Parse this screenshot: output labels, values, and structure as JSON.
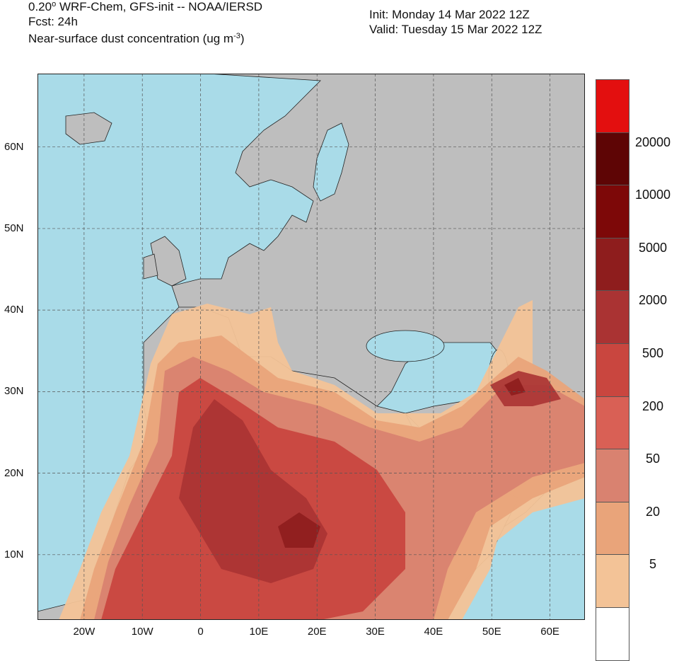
{
  "header": {
    "model_prefix": "0.20",
    "degree": "o",
    "model_suffix": " WRF-Chem, GFS-init -- NOAA/IERSD",
    "forecast": "Fcst: 24h",
    "variable_prefix": "Near-surface dust concentration (ug m",
    "variable_exp": "-3",
    "variable_suffix": ")",
    "init": "Init: Monday 14 Mar 2022  12Z",
    "valid": "Valid: Tuesday 15 Mar 2022  12Z"
  },
  "map": {
    "lon_range": [
      -28,
      66
    ],
    "lat_range": [
      2,
      69
    ],
    "lat_ticks": [
      {
        "value": 60,
        "label": "60N"
      },
      {
        "value": 50,
        "label": "50N"
      },
      {
        "value": 40,
        "label": "40N"
      },
      {
        "value": 30,
        "label": "30N"
      },
      {
        "value": 20,
        "label": "20N"
      },
      {
        "value": 10,
        "label": "10N"
      }
    ],
    "lon_ticks": [
      {
        "value": -20,
        "label": "20W"
      },
      {
        "value": -10,
        "label": "10W"
      },
      {
        "value": 0,
        "label": "0"
      },
      {
        "value": 10,
        "label": "10E"
      },
      {
        "value": 20,
        "label": "20E"
      },
      {
        "value": 30,
        "label": "30E"
      },
      {
        "value": 40,
        "label": "40E"
      },
      {
        "value": 50,
        "label": "50E"
      },
      {
        "value": 60,
        "label": "60E"
      }
    ],
    "colors": {
      "ocean": "#a9dbe8",
      "land": "#bebebe",
      "border": "#222222",
      "grid": "#555555"
    }
  },
  "colorbar": {
    "labels": [
      "20000",
      "10000",
      "5000",
      "2000",
      "500",
      "200",
      "50",
      "20",
      "5"
    ],
    "colors": [
      "#e30f0f",
      "#5e0505",
      "#7d0808",
      "#8e1d1d",
      "#aa3333",
      "#c9463f",
      "#d96055",
      "#d98270",
      "#e9a47a",
      "#f3c397",
      "#ffffff"
    ]
  }
}
